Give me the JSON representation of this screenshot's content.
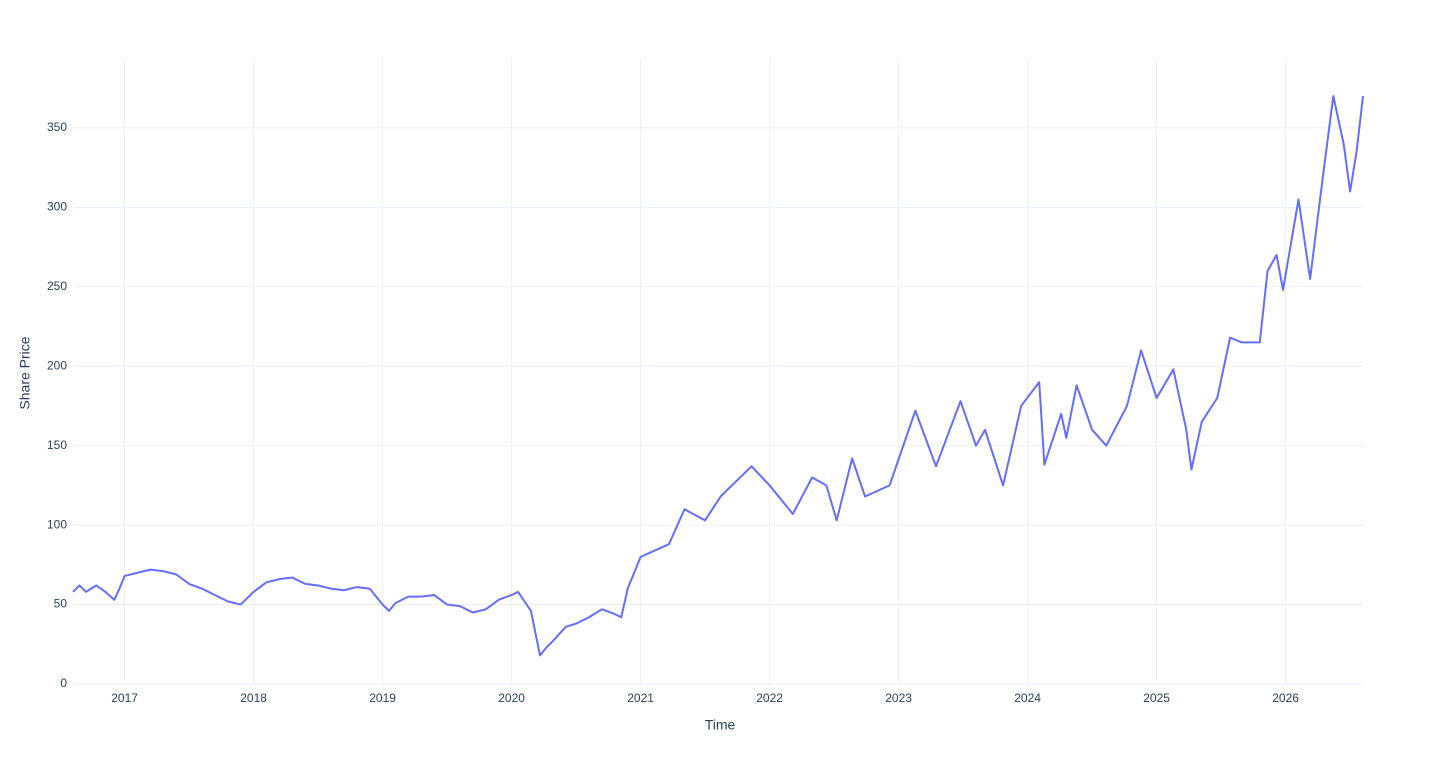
{
  "chart_data": {
    "type": "line",
    "x_label": "Time",
    "y_label": "Share Price",
    "xlim": [
      2016.6,
      2026.6
    ],
    "xticks": [
      2017,
      2018,
      2019,
      2020,
      2021,
      2022,
      2023,
      2024,
      2025,
      2026
    ],
    "ylim": [
      0,
      394
    ],
    "yticks": [
      0,
      50,
      100,
      150,
      200,
      250,
      300,
      350
    ],
    "grid": true,
    "series": [
      {
        "name": "Share Price",
        "color": "#636efa",
        "x": [
          2016.6,
          2016.65,
          2016.7,
          2016.78,
          2016.85,
          2016.92,
          2016.96,
          2017.0,
          2017.1,
          2017.2,
          2017.3,
          2017.4,
          2017.5,
          2017.6,
          2017.7,
          2017.8,
          2017.9,
          2018.0,
          2018.1,
          2018.2,
          2018.3,
          2018.4,
          2018.5,
          2018.6,
          2018.7,
          2018.8,
          2018.9,
          2019.0,
          2019.05,
          2019.1,
          2019.2,
          2019.3,
          2019.4,
          2019.5,
          2019.6,
          2019.7,
          2019.8,
          2019.9,
          2020.0,
          2020.05,
          2020.1,
          2020.15,
          2020.22,
          2020.27,
          2020.32,
          2020.42,
          2020.5,
          2020.6,
          2020.7,
          2020.8,
          2020.85,
          2020.9,
          2021.0,
          2021.22,
          2021.34,
          2021.5,
          2021.62,
          2021.86,
          2022.0,
          2022.18,
          2022.33,
          2022.44,
          2022.52,
          2022.64,
          2022.74,
          2022.93,
          2023.13,
          2023.29,
          2023.48,
          2023.6,
          2023.67,
          2023.81,
          2023.95,
          2024.09,
          2024.13,
          2024.26,
          2024.3,
          2024.38,
          2024.5,
          2024.61,
          2024.77,
          2024.88,
          2025.0,
          2025.13,
          2025.23,
          2025.27,
          2025.35,
          2025.47,
          2025.57,
          2025.66,
          2025.8,
          2025.86,
          2025.93,
          2025.98,
          2026.1,
          2026.19,
          2026.29,
          2026.37,
          2026.45,
          2026.5,
          2026.55,
          2026.6
        ],
        "values": [
          58,
          62,
          58,
          62,
          58,
          53,
          60,
          68,
          70,
          72,
          71,
          69,
          63,
          60,
          56,
          52,
          50,
          58,
          64,
          66,
          67,
          63,
          62,
          60,
          59,
          61,
          60,
          50,
          46,
          51,
          55,
          55,
          56,
          50,
          49,
          45,
          47,
          53,
          56,
          58,
          52,
          46,
          18,
          23,
          27,
          36,
          38,
          42,
          47,
          44,
          42,
          60,
          80,
          88,
          110,
          103,
          118,
          137,
          125,
          107,
          130,
          125,
          103,
          142,
          118,
          125,
          172,
          137,
          178,
          150,
          160,
          125,
          175,
          190,
          138,
          170,
          155,
          188,
          160,
          150,
          175,
          210,
          180,
          198,
          160,
          135,
          165,
          180,
          218,
          215,
          215,
          260,
          270,
          248,
          305,
          255,
          320,
          370,
          340,
          310,
          335,
          370
        ]
      }
    ]
  }
}
